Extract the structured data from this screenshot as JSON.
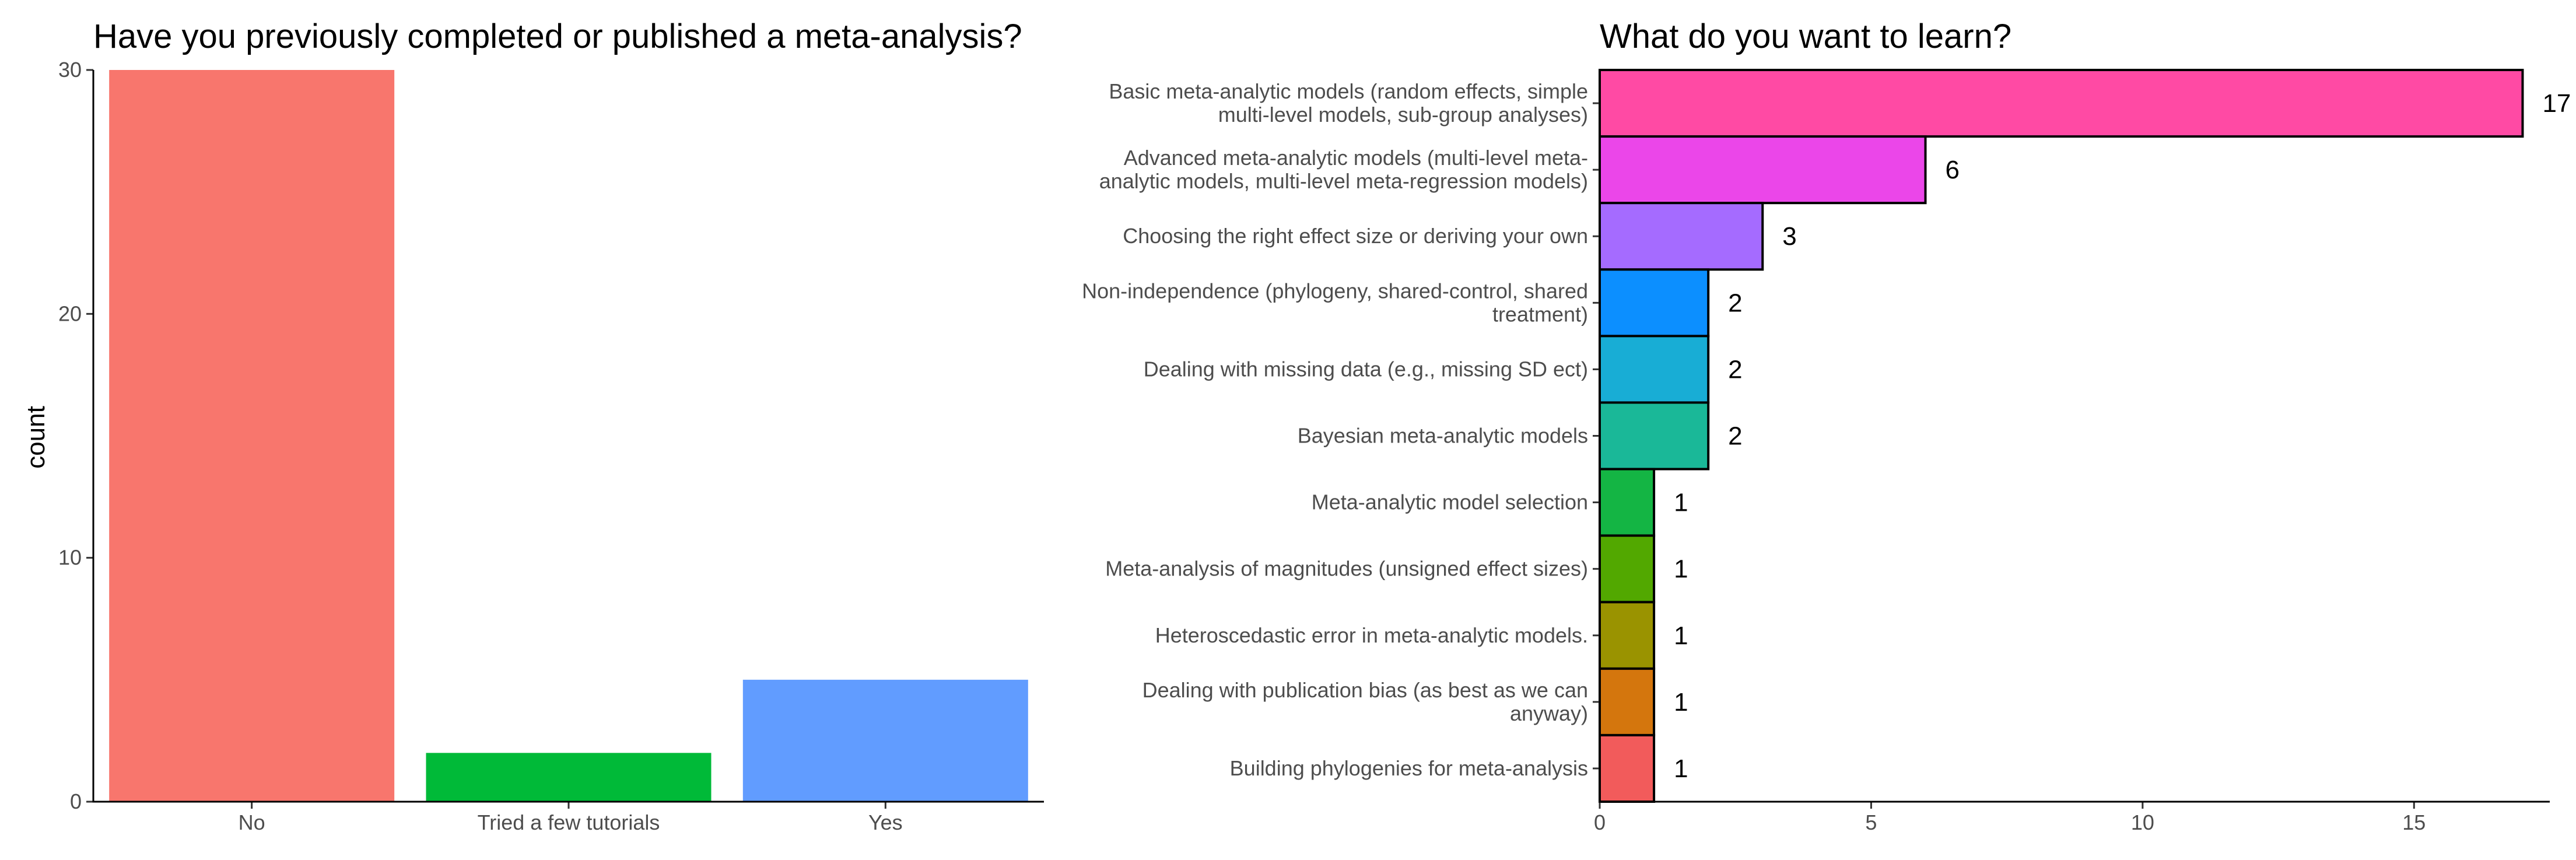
{
  "chart_data": [
    {
      "type": "bar",
      "title": "Have you previously completed or published a meta-analysis?",
      "ylabel": "count",
      "xlabel": "",
      "ylim": [
        0,
        30
      ],
      "yticks": [
        "0",
        "10",
        "20",
        "30"
      ],
      "categories": [
        "No",
        "Tried a few tutorials",
        "Yes"
      ],
      "values": [
        30,
        2,
        5
      ],
      "colors": [
        "#F8766D",
        "#00BA38",
        "#619CFF"
      ],
      "grid": false,
      "legend": "none"
    },
    {
      "type": "bar",
      "orientation": "horizontal",
      "title": "What do you want to learn?",
      "xlabel": "",
      "ylabel": "",
      "xlim": [
        0,
        17.5
      ],
      "xticks": [
        "0",
        "5",
        "10",
        "15"
      ],
      "categories": [
        [
          "Basic meta-analytic models (random effects, simple",
          "multi-level models, sub-group analyses)"
        ],
        [
          "Advanced meta-analytic models (multi-level meta-",
          "analytic models, multi-level meta-regression models)"
        ],
        [
          "Choosing the right effect size or deriving your own"
        ],
        [
          "Non-independence (phylogeny, shared-control, shared",
          "treatment)"
        ],
        [
          "Dealing with missing data (e.g., missing SD ect)"
        ],
        [
          "Bayesian meta-analytic models"
        ],
        [
          "Meta-analytic model selection"
        ],
        [
          "Meta-analysis of magnitudes (unsigned effect sizes)"
        ],
        [
          "Heteroscedastic error in meta-analytic models."
        ],
        [
          "Dealing with publication bias (as best as we can",
          "anyway)"
        ],
        [
          "Building phylogenies for meta-analysis"
        ]
      ],
      "values": [
        17,
        6,
        3,
        2,
        2,
        2,
        1,
        1,
        1,
        1,
        1
      ],
      "value_labels": [
        "17",
        "6",
        "3",
        "2",
        "2",
        "2",
        "1",
        "1",
        "1",
        "1",
        "1"
      ],
      "colors": [
        "#FF4AA4",
        "#EB46E9",
        "#A56BFF",
        "#0C8FFF",
        "#18ADD5",
        "#1AB898",
        "#14B544",
        "#52A800",
        "#9A9300",
        "#D4760D",
        "#F25B5B"
      ],
      "grid": false,
      "legend": "none"
    }
  ]
}
